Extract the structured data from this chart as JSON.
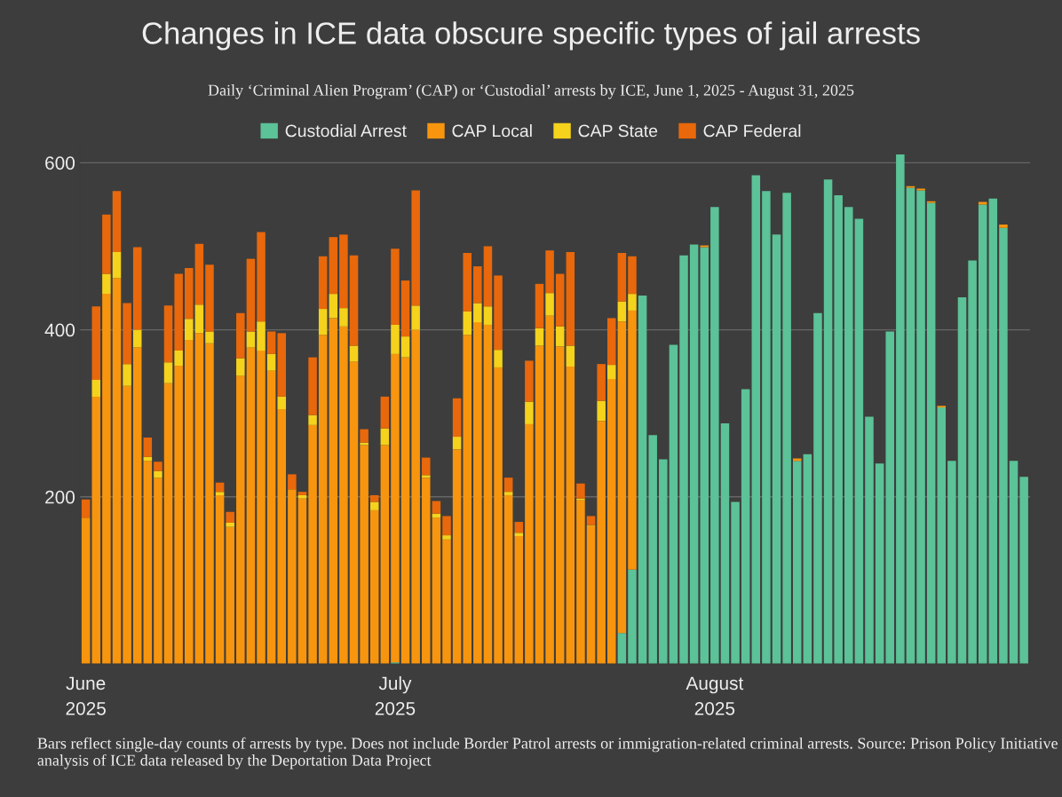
{
  "chart_data": {
    "type": "bar",
    "stacked": true,
    "title": "Changes in ICE data obscure specific types of jail arrests",
    "subtitle": "Daily ‘Criminal Alien Program’ (CAP) or ‘Custodial’ arrests by ICE, June 1, 2025 - August 31, 2025",
    "categories": [
      "June\n2025",
      null,
      null,
      null,
      null,
      null,
      null,
      null,
      null,
      null,
      null,
      null,
      null,
      null,
      null,
      null,
      null,
      null,
      null,
      null,
      null,
      null,
      null,
      null,
      null,
      null,
      null,
      null,
      null,
      null,
      "July\n2025",
      null,
      null,
      null,
      null,
      null,
      null,
      null,
      null,
      null,
      null,
      null,
      null,
      null,
      null,
      null,
      null,
      null,
      null,
      null,
      null,
      null,
      null,
      null,
      null,
      null,
      null,
      null,
      null,
      null,
      null,
      "August\n2025",
      null,
      null,
      null,
      null,
      null,
      null,
      null,
      null,
      null,
      null,
      null,
      null,
      null,
      null,
      null,
      null,
      null,
      null,
      null,
      null,
      null,
      null,
      null,
      null,
      null,
      null,
      null,
      null,
      null,
      null
    ],
    "series": [
      {
        "name": "Custodial Arrest",
        "color": "#5cc298",
        "values": [
          0,
          0,
          0,
          0,
          0,
          0,
          0,
          0,
          0,
          0,
          0,
          0,
          0,
          0,
          0,
          0,
          0,
          0,
          0,
          0,
          0,
          0,
          0,
          0,
          0,
          0,
          0,
          0,
          0,
          0,
          2,
          0,
          0,
          0,
          0,
          0,
          0,
          0,
          0,
          0,
          0,
          0,
          0,
          0,
          0,
          0,
          null,
          0,
          0,
          0,
          0,
          0,
          37,
          113,
          441,
          274,
          245,
          382,
          489,
          502,
          499,
          547,
          288,
          194,
          329,
          585,
          566,
          514,
          564,
          243,
          251,
          420,
          580,
          561,
          547,
          533,
          296,
          240,
          398,
          610,
          570,
          567,
          552,
          307,
          243,
          439,
          483,
          550,
          557,
          522,
          243,
          224
        ]
      },
      {
        "name": "CAP Local",
        "color": "#f7950e",
        "values": [
          175,
          320,
          443,
          462,
          333,
          379,
          243,
          223,
          336,
          357,
          388,
          396,
          384,
          202,
          164,
          345,
          379,
          375,
          351,
          305,
          209,
          198,
          286,
          394,
          414,
          404,
          362,
          262,
          184,
          262,
          369,
          367,
          400,
          223,
          175,
          149,
          257,
          394,
          409,
          406,
          355,
          202,
          153,
          287,
          381,
          417,
          380,
          356,
          196,
          165,
          291,
          341,
          373,
          310,
          0,
          0,
          0,
          0,
          0,
          0,
          2,
          0,
          0,
          0,
          0,
          0,
          0,
          0,
          0,
          3,
          0,
          0,
          0,
          0,
          0,
          0,
          0,
          0,
          0,
          0,
          2,
          2,
          2,
          2,
          0,
          0,
          0,
          3,
          0,
          4,
          0,
          0
        ]
      },
      {
        "name": "CAP State",
        "color": "#f5d21b",
        "values": [
          0,
          20,
          24,
          31,
          26,
          21,
          5,
          8,
          25,
          18,
          25,
          34,
          14,
          4,
          5,
          21,
          19,
          35,
          20,
          15,
          0,
          4,
          12,
          31,
          29,
          22,
          19,
          3,
          10,
          20,
          35,
          25,
          29,
          3,
          5,
          5,
          15,
          28,
          23,
          22,
          21,
          4,
          4,
          27,
          21,
          27,
          24,
          25,
          2,
          1,
          24,
          17,
          24,
          20,
          0,
          0,
          0,
          0,
          0,
          0,
          0,
          0,
          0,
          0,
          0,
          0,
          0,
          0,
          0,
          0,
          0,
          0,
          0,
          0,
          0,
          0,
          0,
          0,
          0,
          0,
          0,
          0,
          0,
          0,
          0,
          0,
          0,
          0,
          0,
          0,
          0,
          0
        ]
      },
      {
        "name": "CAP Federal",
        "color": "#e8680b",
        "values": [
          22,
          88,
          71,
          73,
          73,
          99,
          23,
          11,
          68,
          92,
          61,
          73,
          80,
          11,
          13,
          54,
          87,
          107,
          27,
          76,
          18,
          4,
          69,
          63,
          68,
          88,
          108,
          16,
          8,
          38,
          91,
          67,
          138,
          21,
          15,
          23,
          46,
          70,
          44,
          72,
          89,
          17,
          13,
          49,
          53,
          51,
          63,
          112,
          18,
          11,
          44,
          56,
          58,
          45,
          0,
          0,
          0,
          0,
          0,
          0,
          0,
          0,
          0,
          0,
          0,
          0,
          0,
          0,
          0,
          0,
          0,
          0,
          0,
          0,
          0,
          0,
          0,
          0,
          0,
          0,
          0,
          0,
          0,
          0,
          0,
          0,
          0,
          0,
          0,
          0,
          0,
          0
        ]
      }
    ],
    "ylim": [
      0,
      625
    ],
    "yticks": [
      200,
      400,
      600
    ],
    "grid": "y",
    "legend": "top",
    "annotations": [
      "Bars reflect single-day counts of arrests by type. Does not include Border Patrol arrests or immigration-related criminal arrests. Source: Prison Policy Initiative analysis of ICE data released by the Deportation Data Project"
    ]
  }
}
